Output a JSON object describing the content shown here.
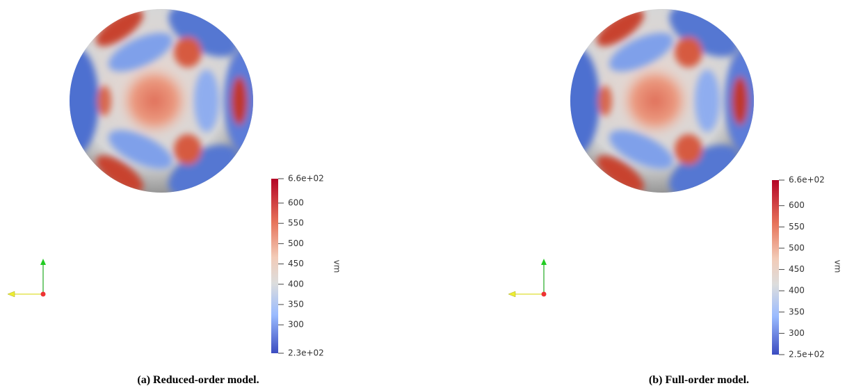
{
  "panels": [
    {
      "caption": "(a) Reduced-order model.",
      "colorbar": {
        "title": "vm",
        "range": [
          230,
          660
        ],
        "ticks": [
          {
            "value": 660,
            "label": "6.6e+02"
          },
          600,
          550,
          500,
          450,
          400,
          350,
          300,
          {
            "value": 230,
            "label": "2.3e+02"
          }
        ]
      }
    },
    {
      "caption": "(b) Full-order model.",
      "colorbar": {
        "title": "vm",
        "range": [
          250,
          660
        ],
        "ticks": [
          {
            "value": 660,
            "label": "6.6e+02"
          },
          600,
          550,
          500,
          450,
          400,
          350,
          300,
          {
            "value": 250,
            "label": "2.5e+02"
          }
        ]
      }
    }
  ]
}
